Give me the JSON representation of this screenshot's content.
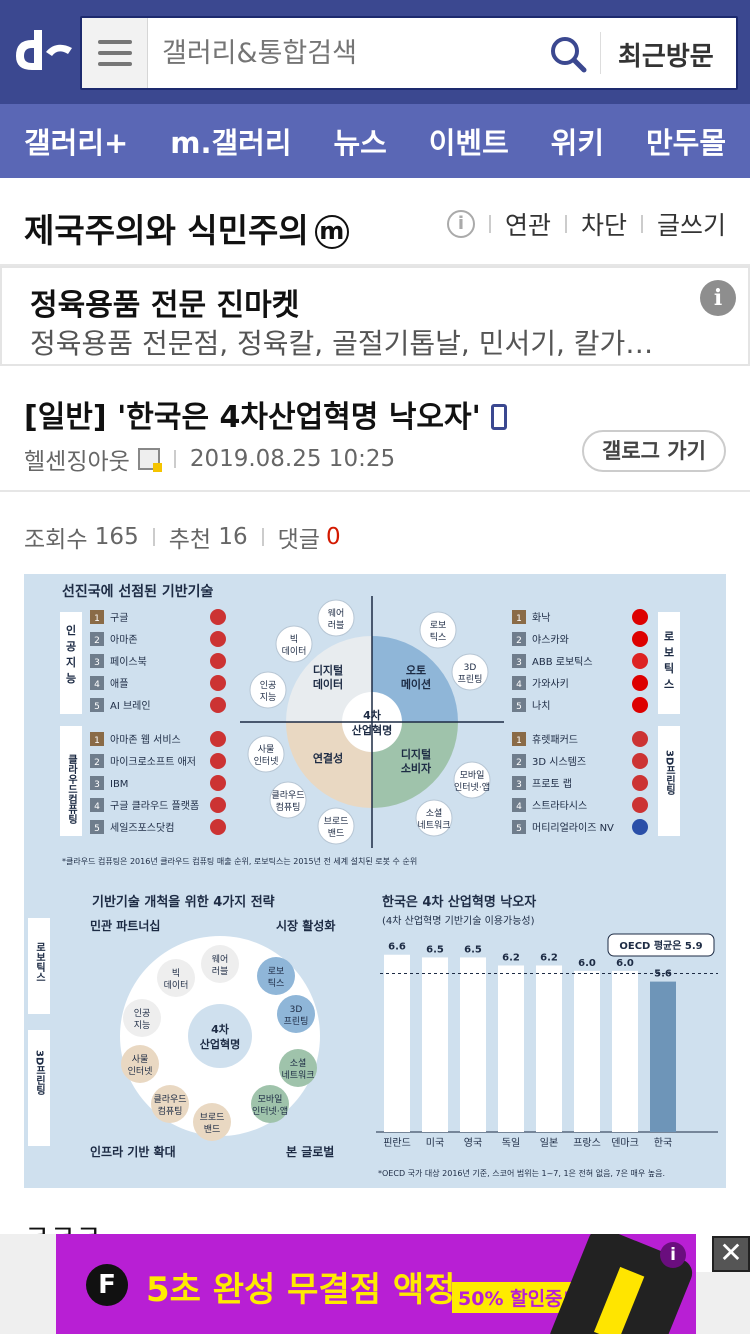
{
  "header": {
    "search_placeholder": "갤러리&통합검색",
    "recent_label": "최근방문"
  },
  "nav": [
    "갤러리+",
    "m.갤러리",
    "뉴스",
    "이벤트",
    "위키",
    "만두몰"
  ],
  "gallery": {
    "title": "제국주의와 식민주의",
    "badge": "m",
    "actions": [
      "연관",
      "차단",
      "글쓰기"
    ]
  },
  "ad": {
    "title": "정육용품 전문 진마켓",
    "description": "정육용품 전문점, 정육칼, 골절기톱날, 민서기, 칼가…",
    "info": "i"
  },
  "post": {
    "title": "[일반] '한국은 4차산업혁명 낙오자'",
    "author": "헬센징아웃",
    "datetime": "2019.08.25 10:25",
    "gallog_label": "갤로그 가기",
    "views_label": "조회수",
    "views": "165",
    "recommend_label": "추천",
    "recommend": "16",
    "comments_label": "댓글",
    "comments": "0",
    "body_text": "ㅋㅋㅋ"
  },
  "infographic": {
    "top_title": "선진국에 선점된 기반기술",
    "ai_label": "인공지능",
    "ai_items": [
      "구글",
      "아마존",
      "페이스북",
      "애플",
      "AI 브레인"
    ],
    "cloud_label": "클라우드컴퓨팅",
    "cloud_items": [
      "아마존 웹 서비스",
      "마이크로소프트 애저",
      "IBM",
      "구글 클라우드 플랫폼",
      "세일즈포스닷컴"
    ],
    "robot_label": "로보틱스",
    "robot_items": [
      "화낙",
      "야스카와",
      "ABB 로보틱스",
      "가와사키",
      "나치"
    ],
    "print_label": "3D프린팅",
    "print_items": [
      "휴렛패커드",
      "3D 시스템즈",
      "프로토 랩",
      "스트라타시스",
      "머티리얼라이즈 NV"
    ],
    "center": "4차 산업혁명",
    "quadrants": [
      "디지털 데이터",
      "오토 메이션",
      "연결성",
      "디지털 소비자"
    ],
    "bubbles": [
      "웨어 러블",
      "빅 데이터",
      "인공 지능",
      "로보 틱스",
      "3D 프린팅",
      "사물 인터넷",
      "클라우드 컴퓨팅",
      "브로드 밴드",
      "모바일 인터넷·앱",
      "소셜 네트워크"
    ],
    "footnote1": "*클라우드 컴퓨팅은 2016년 클라우드 컴퓨팅 매출 순위, 로보틱스는 2015년 전 세계 설치된 로봇 수 순위",
    "strategy_title": "기반기술 개척을 위한 4가지 전략",
    "strategies": [
      "민관 파트너십",
      "시장 활성화",
      "인프라 기반 확대",
      "본 글로벌"
    ],
    "side_left": [
      "로보틱스",
      "3D프린팅"
    ],
    "chart_title": "한국은 4차 산업혁명 낙오자",
    "chart_subtitle": "(4차 산업혁명 기반기술 이용가능성)",
    "oecd_label": "OECD 평균은 5.9",
    "footnote2": "*OECD 국가 대상 2016년 기준, 스코어 범위는 1~7, 1은 전혀 없음, 7은 매우 높음."
  },
  "chart_data": {
    "type": "bar",
    "title": "한국은 4차 산업혁명 낙오자",
    "subtitle": "(4차 산업혁명 기반기술 이용가능성)",
    "categories": [
      "핀란드",
      "미국",
      "영국",
      "독일",
      "일본",
      "프랑스",
      "덴마크",
      "한국"
    ],
    "values": [
      6.6,
      6.5,
      6.5,
      6.2,
      6.2,
      6.0,
      6.0,
      5.6
    ],
    "reference_line": {
      "label": "OECD 평균은 5.9",
      "value": 5.9
    },
    "highlight": "한국",
    "colors": {
      "bar": "#ffffff",
      "highlight": "#6e95b8"
    }
  },
  "bottom_ad": {
    "text": "5초 완성 무결점 액정",
    "sale": "50% 할인중!",
    "logo": "F",
    "info": "i",
    "close": "✕"
  },
  "colors": {
    "header": "#3b4890",
    "nav": "#5a67b5",
    "infographic_bg": "#cfe0ee",
    "ad_bg": "#b81fd4"
  }
}
